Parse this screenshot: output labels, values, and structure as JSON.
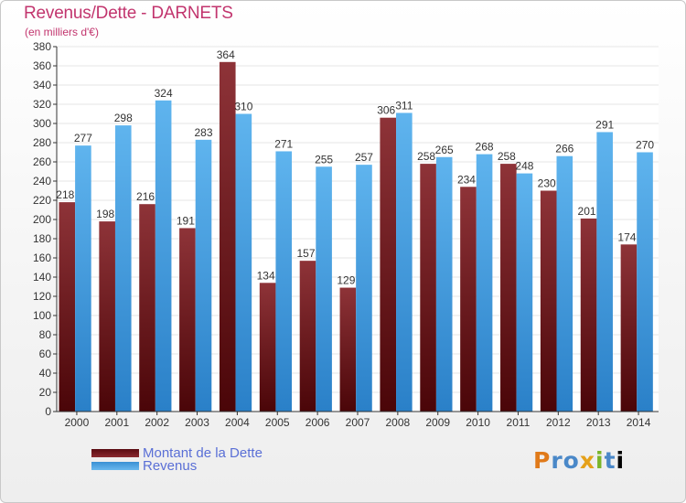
{
  "page": {
    "title": "Revenus/Dette - DARNETS",
    "subtitle": "(en milliers d'€)",
    "logo_text": "Proxiti"
  },
  "colors": {
    "dette": "#7a1f25",
    "revenus": "#4ea6e6",
    "title": "#c2356e",
    "grid": "#e6e6e6",
    "axis": "#333333"
  },
  "chart_data": {
    "type": "bar",
    "title": "Revenus/Dette - DARNETS",
    "subtitle": "(en milliers d'€)",
    "categories": [
      "2000",
      "2001",
      "2002",
      "2003",
      "2004",
      "2005",
      "2006",
      "2007",
      "2008",
      "2009",
      "2010",
      "2011",
      "2012",
      "2013",
      "2014"
    ],
    "series": [
      {
        "name": "Montant de la Dette",
        "values": [
          218,
          198,
          216,
          191,
          364,
          134,
          157,
          129,
          306,
          258,
          234,
          258,
          230,
          201,
          174
        ]
      },
      {
        "name": "Revenus",
        "values": [
          277,
          298,
          324,
          283,
          310,
          271,
          255,
          257,
          311,
          265,
          268,
          248,
          266,
          291,
          270
        ]
      }
    ],
    "yticks": [
      0,
      20,
      40,
      60,
      80,
      100,
      120,
      140,
      160,
      180,
      200,
      220,
      240,
      260,
      280,
      300,
      320,
      340,
      360,
      380
    ],
    "ylim": [
      0,
      380
    ],
    "grid": true,
    "legend_position": "bottom-left"
  }
}
